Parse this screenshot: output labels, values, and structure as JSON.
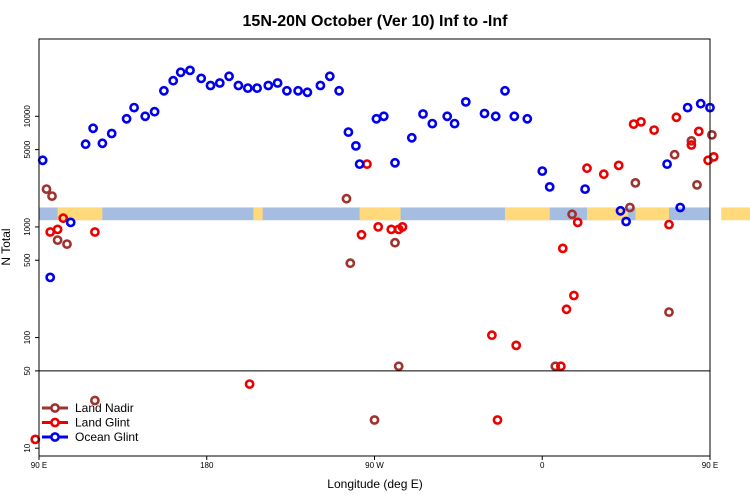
{
  "chart_data": {
    "type": "scatter",
    "title": "15N-20N October (Ver 10)   Inf to -Inf",
    "xlabel": "Longitude (deg E)",
    "ylabel": "N Total",
    "x_axis": {
      "unwrapped_range": [
        90,
        450
      ],
      "tick_positions": [
        90,
        180,
        270,
        360,
        450
      ],
      "tick_labels": [
        "90 E",
        "180",
        "90 W",
        "0",
        "90 E",
        "180"
      ],
      "tick_positions_all": [
        90,
        180,
        270,
        360,
        450,
        540
      ]
    },
    "y_axis": {
      "scale": "log",
      "range": [
        8.5,
        50000
      ],
      "tick_values": [
        10,
        50,
        100,
        500,
        1000,
        5000,
        10000
      ],
      "tick_labels": [
        "10",
        "50",
        "100",
        "500",
        "1000",
        "5000",
        "10000"
      ],
      "divider_value": 50
    },
    "land_band": {
      "low": 1150,
      "high": 1500,
      "color": "#a5bde0",
      "land_color": "#ffd97a"
    },
    "land_segments": [
      [
        100,
        124
      ],
      [
        205,
        210
      ],
      [
        262,
        284
      ],
      [
        340,
        364
      ],
      [
        384,
        406
      ],
      [
        410,
        428
      ],
      [
        456,
        484
      ],
      [
        498,
        516
      ],
      [
        528,
        562
      ],
      [
        560,
        567
      ],
      [
        572,
        582
      ]
    ],
    "legend": [
      {
        "label": "Land Nadir",
        "color": "#a0322d"
      },
      {
        "label": "Land Glint",
        "color": "#ee0000"
      },
      {
        "label": "Ocean Glint",
        "color": "#0000ee"
      }
    ],
    "series": [
      {
        "name": "Land Nadir",
        "color": "#a0322d",
        "x": [
          94,
          97,
          100,
          105,
          120,
          255,
          257,
          270,
          281,
          283,
          367,
          376,
          407,
          410,
          428,
          431,
          440,
          443,
          451,
          455,
          462,
          476,
          496,
          524,
          534,
          539,
          539,
          460
        ],
        "y": [
          2200,
          1900,
          760,
          700,
          27,
          1800,
          470,
          18,
          720,
          55,
          55,
          1300,
          1500,
          2500,
          170,
          4500,
          6000,
          2400,
          6800,
          10500,
          3700,
          11000,
          3700,
          3700,
          420,
          980,
          770,
          2300
        ]
      },
      {
        "name": "Land Glint",
        "color": "#ee0000",
        "x": [
          88,
          96,
          100,
          103,
          120,
          203,
          263,
          266,
          272,
          279,
          283,
          285,
          333,
          336,
          346,
          370,
          371,
          373,
          377,
          379,
          384,
          393,
          401,
          409,
          413,
          420,
          428,
          432,
          440,
          444,
          449,
          452,
          458,
          463,
          485,
          489,
          494,
          506,
          512,
          514,
          522,
          529,
          535
        ],
        "y": [
          12,
          900,
          950,
          1200,
          900,
          38,
          850,
          3700,
          1000,
          950,
          950,
          1000,
          105,
          18,
          85,
          55,
          640,
          180,
          240,
          1100,
          3400,
          3000,
          3600,
          8500,
          8900,
          7500,
          1050,
          9800,
          5500,
          7300,
          4000,
          4300,
          11000,
          9500,
          1800,
          650,
          900,
          180,
          11,
          23,
          560,
          950,
          600
        ]
      },
      {
        "name": "Ocean Glint",
        "color": "#0000ee",
        "x": [
          92,
          96,
          107,
          115,
          119,
          124,
          129,
          137,
          141,
          147,
          152,
          157,
          162,
          166,
          171,
          177,
          182,
          187,
          192,
          197,
          202,
          207,
          213,
          218,
          223,
          229,
          234,
          241,
          246,
          251,
          256,
          260,
          262,
          271,
          275,
          281,
          290,
          296,
          301,
          309,
          313,
          319,
          329,
          335,
          340,
          345,
          352,
          360,
          364,
          383,
          402,
          405,
          427,
          434,
          438,
          445,
          450,
          455,
          461,
          467,
          480,
          488,
          494,
          498,
          502,
          506,
          516,
          521,
          525,
          533,
          541,
          547,
          553,
          560,
          565,
          571,
          577,
          582,
          587
        ],
        "y": [
          4000,
          350,
          1100,
          5600,
          7800,
          5700,
          7000,
          9500,
          12000,
          10000,
          11000,
          17000,
          21000,
          25000,
          26000,
          22000,
          19000,
          20000,
          23000,
          19000,
          18000,
          18000,
          19000,
          20000,
          17000,
          17000,
          16500,
          19000,
          23000,
          17000,
          7200,
          5400,
          3700,
          9500,
          10000,
          3800,
          6400,
          10500,
          8600,
          10000,
          8600,
          13500,
          10600,
          10000,
          17000,
          10000,
          9500,
          3200,
          2300,
          2200,
          1400,
          1120,
          3700,
          1500,
          12000,
          13000,
          12000,
          8500,
          2300,
          370,
          1600,
          4000,
          5600,
          7800,
          5900,
          7000,
          9500,
          12000,
          10000,
          11000,
          17000,
          21000,
          25000,
          26000,
          22000,
          19000,
          9000,
          1200,
          1050
        ]
      }
    ]
  }
}
